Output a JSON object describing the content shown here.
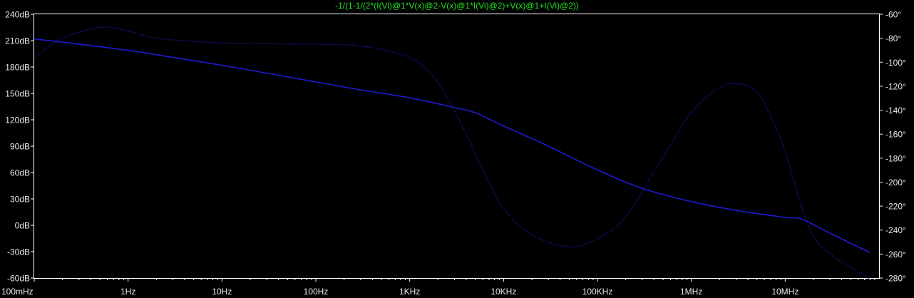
{
  "chart_data": {
    "type": "line",
    "title": "-1/(1-1/(2*(I(Vi)@1*V(x)@2-V(x)@1*I(Vi)@2)+V(x)@1+I(Vi)@2))",
    "x_scale": "log",
    "xlim": [
      0.1,
      100000000
    ],
    "x_ticks": [
      0.1,
      1,
      10,
      100,
      1000,
      10000,
      100000,
      1000000,
      10000000
    ],
    "x_tick_labels": [
      "100mHz",
      "1Hz",
      "10Hz",
      "100Hz",
      "1KHz",
      "10KHz",
      "100KHz",
      "1MHz",
      "10MHz"
    ],
    "y_left": {
      "ylim": [
        -60,
        240
      ],
      "ticks": [
        240,
        210,
        180,
        150,
        120,
        90,
        60,
        30,
        0,
        -30,
        -60
      ],
      "tick_labels": [
        "240dB",
        "210dB",
        "180dB",
        "150dB",
        "120dB",
        "90dB",
        "60dB",
        "30dB",
        "0dB",
        "-30dB",
        "-60dB"
      ]
    },
    "y_right": {
      "ylim": [
        -280,
        -60
      ],
      "ticks": [
        -60,
        -80,
        -100,
        -120,
        -140,
        -160,
        -180,
        -200,
        -220,
        -240,
        -260,
        -280
      ],
      "tick_labels": [
        "-60°",
        "-80°",
        "-100°",
        "-120°",
        "-140°",
        "-160°",
        "-180°",
        "-200°",
        "-220°",
        "-240°",
        "-260°",
        "-280°"
      ]
    },
    "grid": false,
    "series": [
      {
        "axis": "left",
        "style": "solid",
        "color": "#1c1cd0",
        "x": [
          0.1,
          0.3,
          1,
          3,
          10,
          30,
          100,
          300,
          1000,
          3000,
          5000,
          10000,
          30000,
          100000,
          300000,
          1000000,
          3000000,
          10000000,
          15000000,
          30000000,
          80000000
        ],
        "y": [
          212,
          206,
          199,
          191,
          182,
          173,
          163,
          154,
          145,
          134,
          128,
          113,
          90,
          63,
          42,
          27,
          17,
          9,
          7,
          -9,
          -31
        ]
      },
      {
        "axis": "right",
        "style": "dotted",
        "color": "#1c1cb8",
        "x": [
          0.1,
          0.2,
          0.5,
          1,
          2,
          5,
          10,
          30,
          100,
          300,
          1000,
          2000,
          4000,
          6000,
          10000,
          20000,
          50000,
          100000,
          200000,
          500000,
          1000000,
          2000000,
          3000000,
          5000000,
          8000000,
          10000000,
          15000000,
          20000000,
          30000000,
          80000000
        ],
        "y": [
          -96,
          -80,
          -71,
          -74,
          -80,
          -82.5,
          -84,
          -84.5,
          -85,
          -86.5,
          -96,
          -117,
          -160,
          -190,
          -222,
          -244,
          -254,
          -247,
          -229,
          -179,
          -142,
          -121,
          -118,
          -125,
          -155,
          -175,
          -221,
          -245,
          -260,
          -281
        ]
      }
    ]
  }
}
